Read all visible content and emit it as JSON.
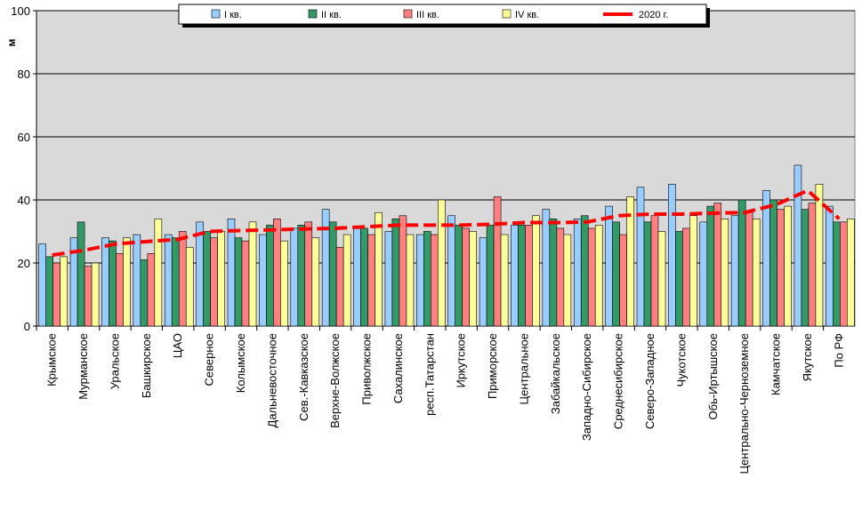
{
  "chart_data": {
    "type": "bar",
    "ylabel": "м",
    "ylim": [
      0,
      100
    ],
    "yticks": [
      0,
      20,
      40,
      60,
      80,
      100
    ],
    "grid": true,
    "legend_position": "top-center",
    "categories": [
      "Крымское",
      "Мурманское",
      "Уральское",
      "Башкирское",
      "ЦАО",
      "Северное",
      "Колымское",
      "Дальневосточное",
      "Сев.-Кавказское",
      "Верхне-Волжское",
      "Приволжское",
      "Сахалинское",
      "респ.Татарстан",
      "Иркутское",
      "Приморское",
      "Центральное",
      "Забайкальское",
      "Западно-Сибирское",
      "Среднесибирское",
      "Северо-Западное",
      "Чукотское",
      "Обь-Иртышское",
      "Центрально-Черноземное",
      "Камчатское",
      "Якутское",
      "По РФ"
    ],
    "series": [
      {
        "name": "I кв.",
        "kind": "bar",
        "color": "#99ccff",
        "values": [
          26,
          28,
          28,
          29,
          29,
          33,
          34,
          29,
          31,
          37,
          31,
          30,
          29,
          35,
          28,
          32,
          37,
          34,
          38,
          44,
          45,
          33,
          35,
          43,
          51,
          38
        ]
      },
      {
        "name": "II кв.",
        "kind": "bar",
        "color": "#339966",
        "values": [
          22,
          33,
          27,
          21,
          28,
          30,
          28,
          32,
          32,
          33,
          31,
          34,
          30,
          32,
          32,
          32,
          34,
          35,
          33,
          33,
          30,
          38,
          40,
          40,
          37,
          33
        ]
      },
      {
        "name": "III кв.",
        "kind": "bar",
        "color": "#ff8080",
        "values": [
          20,
          19,
          23,
          23,
          30,
          28,
          27,
          34,
          33,
          25,
          29,
          35,
          29,
          31,
          41,
          32,
          31,
          31,
          29,
          35,
          31,
          39,
          36,
          37,
          39,
          33
        ]
      },
      {
        "name": "IV кв.",
        "kind": "bar",
        "color": "#ffff99",
        "values": [
          22,
          20,
          28,
          34,
          25,
          30,
          33,
          27,
          28,
          29,
          36,
          29,
          40,
          30,
          29,
          35,
          29,
          32,
          41,
          30,
          35,
          34,
          34,
          38,
          45,
          34
        ]
      },
      {
        "name": "2020 г.",
        "kind": "line",
        "color": "#ff0000",
        "values": [
          22.5,
          24,
          26,
          26.8,
          27.5,
          30,
          30.3,
          30.5,
          30.8,
          31,
          31.5,
          32,
          32,
          32,
          32.3,
          32.8,
          32.8,
          33,
          35,
          35.5,
          35.5,
          35.8,
          36,
          38.5,
          43,
          34
        ]
      }
    ]
  }
}
